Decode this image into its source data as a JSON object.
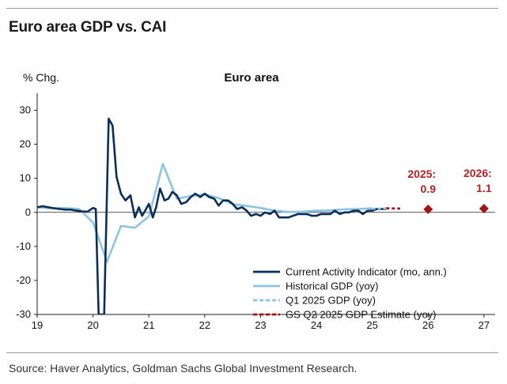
{
  "header": {
    "title": "Euro area GDP vs. CAI"
  },
  "footer": {
    "source": "Source: Haver Analytics, Goldman Sachs Global Investment Research."
  },
  "chart_data": {
    "type": "line",
    "title": "Euro area",
    "ylabel": "% Chg.",
    "xlabel": "",
    "xlim": [
      2019,
      2027.2
    ],
    "ylim": [
      -30,
      35
    ],
    "x_ticks": [
      "19",
      "20",
      "21",
      "22",
      "23",
      "24",
      "25",
      "26",
      "27"
    ],
    "y_ticks": [
      "30",
      "20",
      "10",
      "0",
      "-10",
      "-20",
      "-30"
    ],
    "colors": {
      "cai": "#0b2e59",
      "gdp": "#8cc4e6",
      "q1": "#8cc4e6",
      "gs": "#a31515"
    },
    "legend_position": "bottom-right",
    "series": [
      {
        "name": "Current Activity Indicator (mo, ann.)",
        "style": "solid-dark",
        "x": [
          2019.0,
          2019.1,
          2019.2,
          2019.3,
          2019.4,
          2019.5,
          2019.6,
          2019.7,
          2019.8,
          2019.9,
          2020.0,
          2020.05,
          2020.1,
          2020.15,
          2020.2,
          2020.28,
          2020.35,
          2020.42,
          2020.5,
          2020.58,
          2020.67,
          2020.75,
          2020.82,
          2020.88,
          2020.95,
          2021.0,
          2021.07,
          2021.13,
          2021.2,
          2021.28,
          2021.35,
          2021.42,
          2021.5,
          2021.58,
          2021.67,
          2021.75,
          2021.83,
          2021.92,
          2022.0,
          2022.08,
          2022.17,
          2022.25,
          2022.33,
          2022.42,
          2022.5,
          2022.58,
          2022.67,
          2022.75,
          2022.83,
          2022.92,
          2023.0,
          2023.08,
          2023.17,
          2023.25,
          2023.33,
          2023.42,
          2023.5,
          2023.58,
          2023.67,
          2023.75,
          2023.83,
          2023.92,
          2024.0,
          2024.08,
          2024.17,
          2024.25,
          2024.33,
          2024.42,
          2024.5,
          2024.58,
          2024.67,
          2024.75,
          2024.83,
          2024.92,
          2025.0,
          2025.08,
          2025.17,
          2025.25
        ],
        "values": [
          1.5,
          1.8,
          1.5,
          1.2,
          1.0,
          0.8,
          0.8,
          0.5,
          0.3,
          0.2,
          1.3,
          1.0,
          -30,
          -30,
          -30,
          27.5,
          25.5,
          10.5,
          5.5,
          3.5,
          5.0,
          -1.5,
          1.5,
          -1.0,
          1.0,
          2.5,
          -1.5,
          1.5,
          7.0,
          3.5,
          4.0,
          6.0,
          5.0,
          2.5,
          3.0,
          4.5,
          5.5,
          4.5,
          5.5,
          4.5,
          4.0,
          2.0,
          3.5,
          3.5,
          2.5,
          1.0,
          1.5,
          0.5,
          -1.0,
          -0.5,
          -1.0,
          0.0,
          -0.5,
          0.5,
          -1.5,
          -1.5,
          -1.5,
          -1.0,
          -0.5,
          -0.5,
          -0.5,
          -1.0,
          -1.0,
          -0.5,
          -0.5,
          -0.5,
          0.5,
          -0.5,
          0.0,
          0.0,
          0.5,
          0.5,
          -0.5,
          0.5,
          0.5,
          1.0,
          1.0,
          1.0
        ]
      },
      {
        "name": "Historical GDP (yoy)",
        "style": "solid-light",
        "x": [
          2019.0,
          2019.25,
          2019.5,
          2019.75,
          2020.0,
          2020.25,
          2020.5,
          2020.75,
          2021.0,
          2021.25,
          2021.5,
          2021.75,
          2022.0,
          2022.25,
          2022.5,
          2022.75,
          2023.0,
          2023.25,
          2023.5,
          2023.75,
          2024.0,
          2024.25,
          2024.5,
          2024.75,
          2025.0
        ],
        "values": [
          1.5,
          1.2,
          1.3,
          1.0,
          -3.0,
          -14.5,
          -4.0,
          -4.5,
          -1.2,
          14.2,
          4.0,
          4.8,
          5.3,
          4.2,
          2.4,
          1.9,
          1.3,
          0.5,
          0.1,
          0.2,
          0.5,
          0.6,
          0.9,
          1.0,
          1.2
        ]
      },
      {
        "name": "Q1 2025 GDP (yoy)",
        "style": "dashed-light",
        "x": [
          2024.9,
          2025.3
        ],
        "values": [
          1.0,
          1.2
        ]
      },
      {
        "name": "GS Q2 2025 GDP Estimate (yoy)",
        "style": "dashed-red",
        "x": [
          2025.25,
          2025.5
        ],
        "values": [
          1.2,
          1.1
        ]
      }
    ],
    "annotations": [
      {
        "label_year": "2025:",
        "label_value": "0.9",
        "x": 2026.0,
        "y": 0.9
      },
      {
        "label_year": "2026:",
        "label_value": "1.1",
        "x": 2027.0,
        "y": 1.1
      }
    ]
  }
}
